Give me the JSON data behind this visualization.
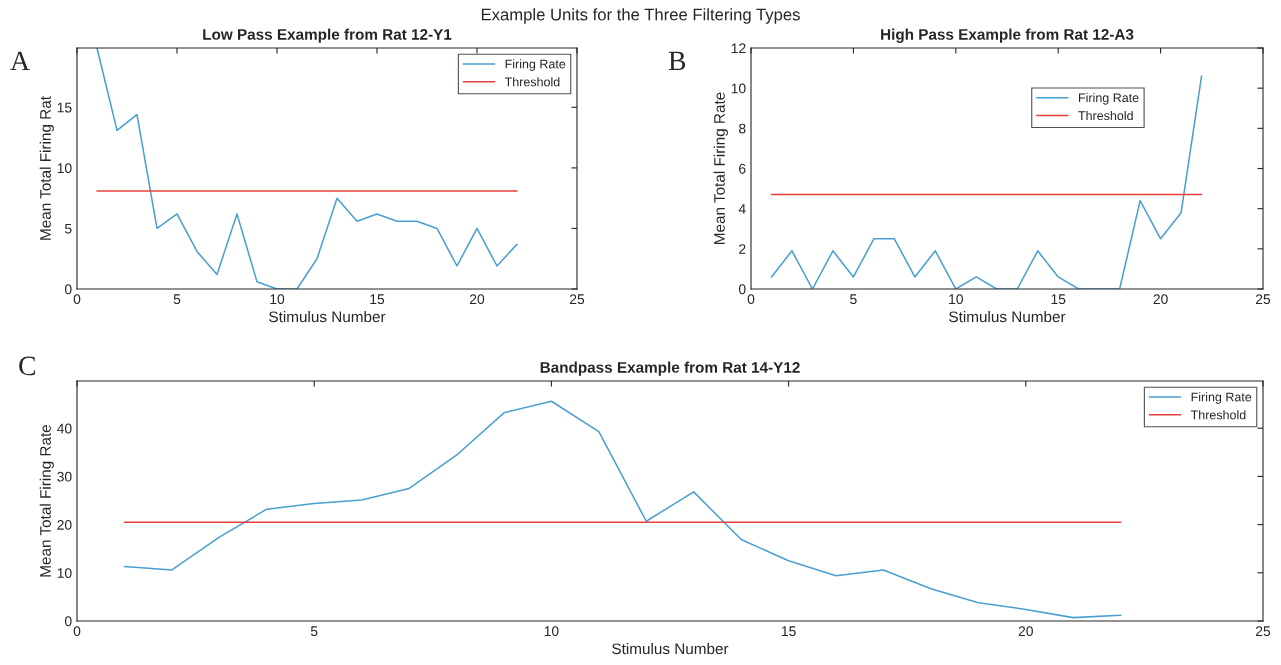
{
  "chart_data": [
    {
      "type": "line",
      "title": "Low Pass Example from Rat 12-Y1",
      "xlabel": "Stimulus Number",
      "ylabel": "Mean Total Firing Rat",
      "annotations": [
        "Example Units for the Three Filtering Types",
        "A"
      ],
      "xlim": [
        0,
        25
      ],
      "xticks": [
        0,
        5,
        10,
        15,
        20,
        25
      ],
      "ylim": [
        0,
        19.9
      ],
      "yticks": [
        0,
        5,
        10,
        15
      ],
      "legend": "top right",
      "grid": false,
      "series": [
        {
          "name": "Firing Rate",
          "color": "#4a9fd0",
          "x": [
            1,
            2,
            3,
            4,
            5,
            6,
            7,
            8,
            9,
            10,
            11,
            12,
            13,
            14,
            15,
            16,
            17,
            18,
            19,
            20,
            21,
            22
          ],
          "values": [
            19.9,
            13.1,
            14.4,
            5.0,
            6.2,
            3.1,
            1.2,
            6.2,
            0.6,
            0,
            0,
            2.5,
            7.5,
            5.6,
            6.2,
            5.6,
            5.6,
            5.0,
            1.9,
            5.0,
            1.9,
            3.7
          ]
        },
        {
          "name": "Threshold",
          "color": "#e8413a",
          "x": [
            1,
            22
          ],
          "values": [
            8.1,
            8.1
          ]
        }
      ]
    },
    {
      "type": "line",
      "title": "High Pass Example from Rat 12-A3",
      "xlabel": "Stimulus Number",
      "ylabel": "Mean Total Firing Rate",
      "annotations": [
        "B"
      ],
      "xlim": [
        0,
        25
      ],
      "xticks": [
        0,
        5,
        10,
        15,
        20,
        25
      ],
      "ylim": [
        0,
        12
      ],
      "yticks": [
        0,
        2,
        4,
        6,
        8,
        10,
        12
      ],
      "legend": "top right",
      "grid": false,
      "series": [
        {
          "name": "Firing Rate",
          "color": "#4a9fd0",
          "x": [
            1,
            2,
            3,
            4,
            5,
            6,
            7,
            8,
            9,
            10,
            11,
            12,
            13,
            14,
            15,
            16,
            17,
            18,
            19,
            20,
            21,
            22
          ],
          "values": [
            0.6,
            1.9,
            0,
            1.9,
            0.6,
            2.5,
            2.5,
            0.6,
            1.9,
            0,
            0.6,
            0,
            0,
            1.9,
            0.6,
            0,
            0,
            0,
            4.4,
            2.5,
            3.8,
            10.6
          ]
        },
        {
          "name": "Threshold",
          "color": "#e8413a",
          "x": [
            1,
            22
          ],
          "values": [
            4.7,
            4.7
          ]
        }
      ]
    },
    {
      "type": "line",
      "title": "Bandpass Example from Rat 14-Y12",
      "xlabel": "Stimulus Number",
      "ylabel": "Mean Total Firing Rate",
      "annotations": [
        "C"
      ],
      "xlim": [
        0,
        25
      ],
      "xticks": [
        0,
        5,
        10,
        15,
        20,
        25
      ],
      "ylim": [
        0,
        49.8
      ],
      "yticks": [
        0,
        10,
        20,
        30,
        40
      ],
      "legend": "top right",
      "grid": false,
      "series": [
        {
          "name": "Firing Rate",
          "color": "#4a9fd0",
          "x": [
            1,
            2,
            3,
            4,
            5,
            6,
            7,
            8,
            9,
            10,
            11,
            12,
            13,
            14,
            15,
            16,
            17,
            18,
            19,
            20,
            21,
            22
          ],
          "values": [
            11.3,
            10.6,
            17.4,
            23.2,
            24.4,
            25.1,
            27.5,
            34.4,
            43.2,
            45.6,
            39.3,
            20.7,
            26.8,
            16.9,
            12.5,
            9.4,
            10.6,
            6.7,
            3.8,
            2.4,
            0.7,
            1.2
          ]
        },
        {
          "name": "Threshold",
          "color": "#e8413a",
          "x": [
            1,
            22
          ],
          "values": [
            20.5,
            20.5
          ]
        }
      ]
    }
  ]
}
